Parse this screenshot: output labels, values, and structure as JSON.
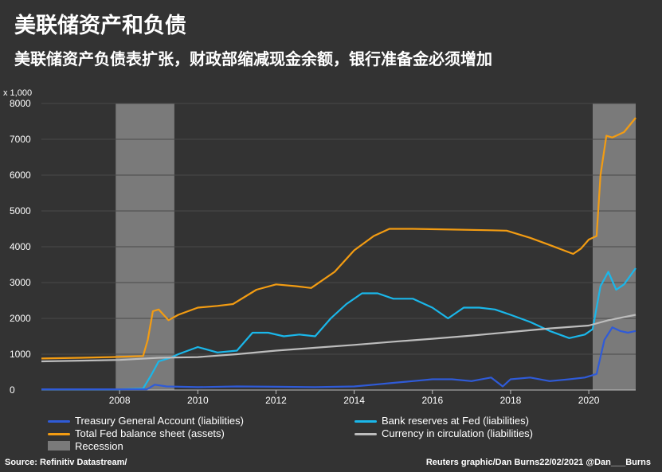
{
  "title": "美联储资产和负债",
  "subtitle": "美联储资产负债表扩张，财政部缩减现金余额，银行准备金必须增加",
  "footer": {
    "source": "Source: Refinitiv Datastream/",
    "credit": "Reuters graphic/Dan Burns22/02/2021 @Dan___Burns"
  },
  "chart_data": {
    "type": "line",
    "ylabel": "x 1,000",
    "ylim": [
      0,
      8000
    ],
    "yticks": [
      "0",
      "1000",
      "2000",
      "3000",
      "4000",
      "5000",
      "6000",
      "7000",
      "8000"
    ],
    "xlim": [
      2006.0,
      2021.2
    ],
    "xticks": [
      "2008",
      "2010",
      "2012",
      "2014",
      "2016",
      "2018",
      "2020"
    ],
    "grid": true,
    "legend_position": "bottom",
    "recessions": [
      {
        "start": 2007.9,
        "end": 2009.4
      },
      {
        "start": 2020.1,
        "end": 2021.2
      }
    ],
    "legend": [
      {
        "label": "Treasury General Account (liabilities)",
        "color": "#2f5bd8",
        "kind": "line"
      },
      {
        "label": "Bank reserves at Fed (liabilities)",
        "color": "#1ab7ea",
        "kind": "line"
      },
      {
        "label": "Total Fed balance sheet (assets)",
        "color": "#f39c12",
        "kind": "line"
      },
      {
        "label": "Currency in circulation (liabilities)",
        "color": "#bdbdbd",
        "kind": "line"
      },
      {
        "label": "Recession",
        "color": "#7a7a7a",
        "kind": "box"
      }
    ],
    "series": [
      {
        "name": "Total Fed balance sheet (assets)",
        "color": "#f39c12",
        "points": [
          [
            2006.0,
            880
          ],
          [
            2007.0,
            900
          ],
          [
            2007.8,
            920
          ],
          [
            2008.6,
            950
          ],
          [
            2008.72,
            1400
          ],
          [
            2008.85,
            2200
          ],
          [
            2009.0,
            2250
          ],
          [
            2009.25,
            1950
          ],
          [
            2009.5,
            2100
          ],
          [
            2010.0,
            2300
          ],
          [
            2010.5,
            2350
          ],
          [
            2010.9,
            2400
          ],
          [
            2011.5,
            2800
          ],
          [
            2012.0,
            2950
          ],
          [
            2012.5,
            2900
          ],
          [
            2012.9,
            2850
          ],
          [
            2013.5,
            3300
          ],
          [
            2014.0,
            3900
          ],
          [
            2014.5,
            4300
          ],
          [
            2014.9,
            4500
          ],
          [
            2015.5,
            4500
          ],
          [
            2016.5,
            4480
          ],
          [
            2017.5,
            4460
          ],
          [
            2017.9,
            4450
          ],
          [
            2018.5,
            4250
          ],
          [
            2019.0,
            4050
          ],
          [
            2019.6,
            3800
          ],
          [
            2019.8,
            3950
          ],
          [
            2020.0,
            4200
          ],
          [
            2020.2,
            4300
          ],
          [
            2020.3,
            6000
          ],
          [
            2020.45,
            7100
          ],
          [
            2020.6,
            7050
          ],
          [
            2020.9,
            7200
          ],
          [
            2021.2,
            7600
          ]
        ]
      },
      {
        "name": "Bank reserves at Fed (liabilities)",
        "color": "#1ab7ea",
        "points": [
          [
            2006.0,
            20
          ],
          [
            2007.0,
            20
          ],
          [
            2008.0,
            20
          ],
          [
            2008.6,
            40
          ],
          [
            2008.8,
            400
          ],
          [
            2009.0,
            800
          ],
          [
            2009.3,
            900
          ],
          [
            2009.5,
            1000
          ],
          [
            2010.0,
            1200
          ],
          [
            2010.5,
            1050
          ],
          [
            2011.0,
            1100
          ],
          [
            2011.4,
            1600
          ],
          [
            2011.8,
            1600
          ],
          [
            2012.2,
            1500
          ],
          [
            2012.6,
            1550
          ],
          [
            2013.0,
            1500
          ],
          [
            2013.4,
            2000
          ],
          [
            2013.8,
            2400
          ],
          [
            2014.2,
            2700
          ],
          [
            2014.6,
            2700
          ],
          [
            2015.0,
            2550
          ],
          [
            2015.5,
            2550
          ],
          [
            2016.0,
            2300
          ],
          [
            2016.4,
            2000
          ],
          [
            2016.8,
            2300
          ],
          [
            2017.2,
            2300
          ],
          [
            2017.6,
            2250
          ],
          [
            2018.0,
            2100
          ],
          [
            2018.5,
            1900
          ],
          [
            2019.0,
            1650
          ],
          [
            2019.5,
            1450
          ],
          [
            2019.9,
            1550
          ],
          [
            2020.1,
            1700
          ],
          [
            2020.3,
            2900
          ],
          [
            2020.5,
            3300
          ],
          [
            2020.7,
            2800
          ],
          [
            2020.9,
            2950
          ],
          [
            2021.2,
            3400
          ]
        ]
      },
      {
        "name": "Currency in circulation (liabilities)",
        "color": "#bdbdbd",
        "points": [
          [
            2006.0,
            800
          ],
          [
            2007.0,
            820
          ],
          [
            2008.0,
            840
          ],
          [
            2009.0,
            900
          ],
          [
            2010.0,
            920
          ],
          [
            2011.0,
            1000
          ],
          [
            2012.0,
            1100
          ],
          [
            2013.0,
            1180
          ],
          [
            2014.0,
            1260
          ],
          [
            2015.0,
            1350
          ],
          [
            2016.0,
            1430
          ],
          [
            2017.0,
            1520
          ],
          [
            2018.0,
            1620
          ],
          [
            2019.0,
            1720
          ],
          [
            2020.0,
            1800
          ],
          [
            2020.5,
            1950
          ],
          [
            2021.2,
            2100
          ]
        ]
      },
      {
        "name": "Treasury General Account (liabilities)",
        "color": "#2f5bd8",
        "points": [
          [
            2006.0,
            20
          ],
          [
            2007.0,
            20
          ],
          [
            2008.0,
            20
          ],
          [
            2008.7,
            20
          ],
          [
            2008.9,
            150
          ],
          [
            2009.2,
            100
          ],
          [
            2010.0,
            80
          ],
          [
            2011.0,
            100
          ],
          [
            2012.0,
            90
          ],
          [
            2013.0,
            80
          ],
          [
            2014.0,
            100
          ],
          [
            2014.5,
            150
          ],
          [
            2015.0,
            200
          ],
          [
            2015.5,
            250
          ],
          [
            2016.0,
            300
          ],
          [
            2016.5,
            300
          ],
          [
            2017.0,
            250
          ],
          [
            2017.5,
            350
          ],
          [
            2017.8,
            100
          ],
          [
            2018.0,
            300
          ],
          [
            2018.5,
            350
          ],
          [
            2019.0,
            250
          ],
          [
            2019.5,
            300
          ],
          [
            2019.9,
            350
          ],
          [
            2020.2,
            450
          ],
          [
            2020.4,
            1400
          ],
          [
            2020.6,
            1750
          ],
          [
            2020.8,
            1650
          ],
          [
            2021.0,
            1600
          ],
          [
            2021.2,
            1650
          ]
        ]
      }
    ]
  }
}
